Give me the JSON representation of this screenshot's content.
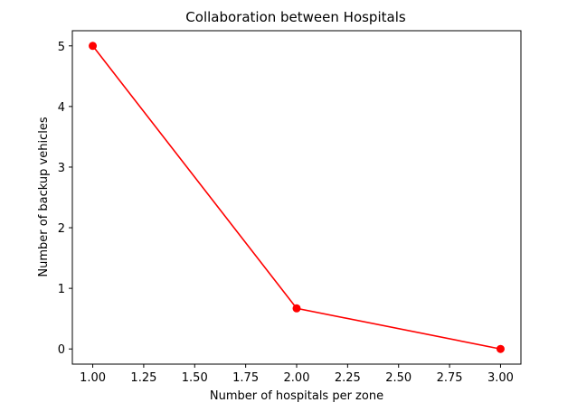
{
  "chart_data": {
    "type": "line",
    "title": "Collaboration between Hospitals",
    "xlabel": "Number of hospitals per zone",
    "ylabel": "Number of backup vehicles",
    "xlim": [
      0.9,
      3.1
    ],
    "ylim": [
      -0.25,
      5.25
    ],
    "xticks": [
      "1.00",
      "1.25",
      "1.50",
      "1.75",
      "2.00",
      "2.25",
      "2.50",
      "2.75",
      "3.00"
    ],
    "yticks": [
      "0",
      "1",
      "2",
      "3",
      "4",
      "5"
    ],
    "grid": false,
    "series": [
      {
        "color": "#ff0000",
        "marker": "circle",
        "x": [
          1,
          2,
          3
        ],
        "y": [
          5,
          0.67,
          0
        ]
      }
    ]
  }
}
